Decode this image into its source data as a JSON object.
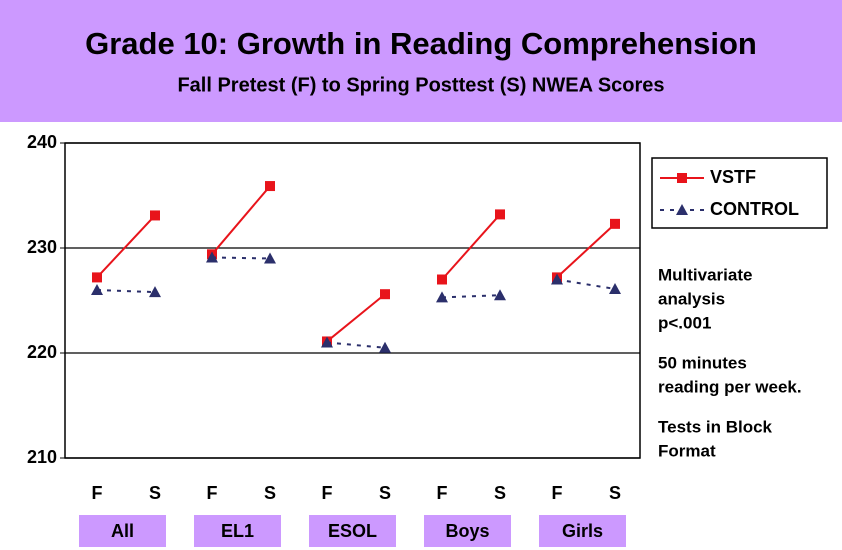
{
  "chart_data": {
    "type": "line",
    "title": "Grade 10: Growth in Reading Comprehension",
    "subtitle": "Fall Pretest (F) to Spring Posttest (S) NWEA Scores",
    "categories": [
      "F",
      "S",
      "F",
      "S",
      "F",
      "S",
      "F",
      "S",
      "F",
      "S"
    ],
    "groups": [
      "All",
      "EL1",
      "ESOL",
      "Boys",
      "Girls"
    ],
    "series": [
      {
        "name": "VSTF",
        "color": "#e8141b",
        "marker": "square",
        "dash": false,
        "values": [
          227.2,
          233.1,
          229.4,
          235.9,
          221.1,
          225.6,
          227.0,
          233.2,
          227.2,
          232.3
        ]
      },
      {
        "name": "CONTROL",
        "color": "#2b2f6b",
        "marker": "triangle",
        "dash": true,
        "values": [
          226.0,
          225.8,
          229.1,
          229.0,
          221.0,
          220.5,
          225.3,
          225.5,
          227.0,
          226.1
        ]
      }
    ],
    "ylim": [
      210,
      240
    ],
    "yticks": [
      210,
      220,
      230,
      240
    ],
    "grid": true,
    "legend": "right",
    "annotations": [
      [
        "Multivariate",
        "analysis",
        "p<.001"
      ],
      [
        "50 minutes",
        "reading per week."
      ],
      [
        "Tests in Block",
        "Format"
      ]
    ]
  }
}
